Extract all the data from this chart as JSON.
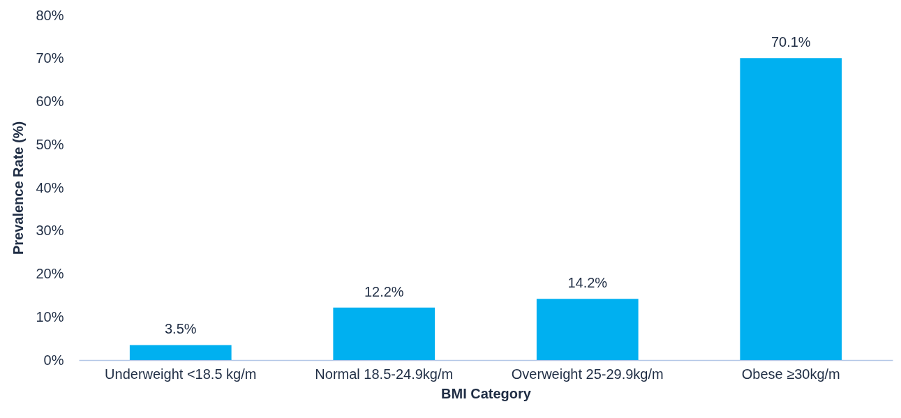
{
  "chart_data": {
    "type": "bar",
    "categories": [
      "Underweight <18.5 kg/m",
      "Normal 18.5-24.9kg/m",
      "Overweight 25-29.9kg/m",
      "Obese ≥30kg/m"
    ],
    "values": [
      3.5,
      12.2,
      14.2,
      70.1
    ],
    "value_labels": [
      "3.5%",
      "12.2%",
      "14.2%",
      "70.1%"
    ],
    "color": "#00b0f0",
    "xlabel": "BMI Category",
    "ylabel": "Prevalence Rate (%)",
    "ylim": [
      0,
      80
    ],
    "yticks": [
      {
        "value": 0,
        "label": "0%"
      },
      {
        "value": 10,
        "label": "10%"
      },
      {
        "value": 20,
        "label": "20%"
      },
      {
        "value": 30,
        "label": "30%"
      },
      {
        "value": 40,
        "label": "40%"
      },
      {
        "value": 50,
        "label": "50%"
      },
      {
        "value": 60,
        "label": "60%"
      },
      {
        "value": 70,
        "label": "70%"
      },
      {
        "value": 80,
        "label": "80%"
      }
    ],
    "grid": false
  }
}
